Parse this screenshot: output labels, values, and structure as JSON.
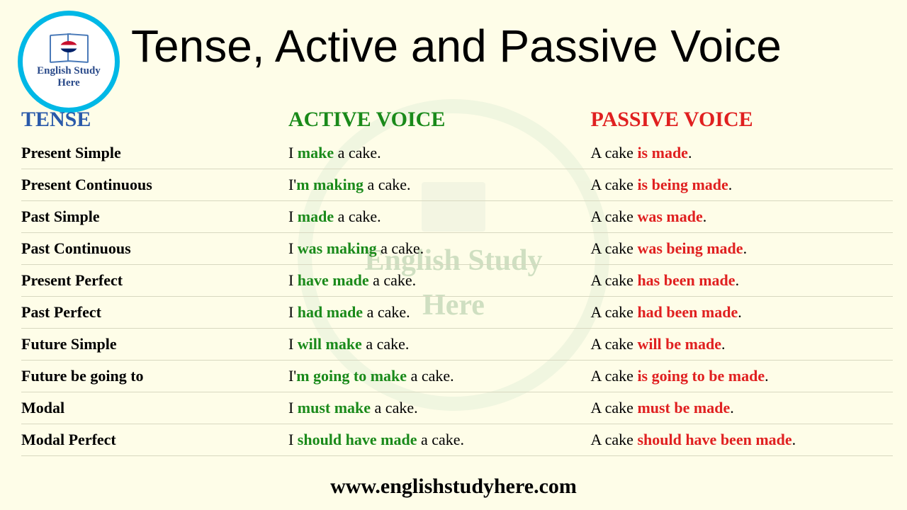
{
  "logo": {
    "line1": "English Study",
    "line2": "Here"
  },
  "title": "Tense, Active and Passive Voice",
  "headers": {
    "tense": "TENSE",
    "active": "ACTIVE VOICE",
    "passive": "PASSIVE VOICE"
  },
  "watermark": "English Study\nHere",
  "footer": "www.englishstudyhere.com",
  "colors": {
    "background": "#fefde8",
    "tense_header": "#2a5aaa",
    "active_header": "#1a8a1a",
    "passive_header": "#e02020",
    "active_verb": "#1a8a1a",
    "passive_verb": "#e02020",
    "logo_border": "#00b8e6",
    "row_border": "#d8d8c0"
  },
  "typography": {
    "title_fontsize": 64,
    "header_fontsize": 30,
    "row_fontsize": 22,
    "footer_fontsize": 30
  },
  "rows": [
    {
      "tense": "Present Simple",
      "active_pre": "I ",
      "active_verb": "make",
      "active_post": " a cake.",
      "passive_pre": "A cake ",
      "passive_verb": "is made",
      "passive_post": "."
    },
    {
      "tense": "Present Continuous",
      "active_pre": "I'",
      "active_verb": "m making",
      "active_post": " a cake.",
      "passive_pre": "A cake ",
      "passive_verb": "is being made",
      "passive_post": "."
    },
    {
      "tense": "Past Simple",
      "active_pre": "I ",
      "active_verb": "made",
      "active_post": " a cake.",
      "passive_pre": "A cake ",
      "passive_verb": "was made",
      "passive_post": "."
    },
    {
      "tense": "Past Continuous",
      "active_pre": "I ",
      "active_verb": "was making",
      "active_post": " a cake.",
      "passive_pre": "A cake ",
      "passive_verb": "was being made",
      "passive_post": "."
    },
    {
      "tense": "Present Perfect",
      "active_pre": "I ",
      "active_verb": "have made",
      "active_post": " a cake.",
      "passive_pre": "A cake ",
      "passive_verb": "has been made",
      "passive_post": "."
    },
    {
      "tense": "Past Perfect",
      "active_pre": "I ",
      "active_verb": "had made",
      "active_post": " a cake.",
      "passive_pre": "A cake ",
      "passive_verb": "had been made",
      "passive_post": "."
    },
    {
      "tense": "Future Simple",
      "active_pre": "I ",
      "active_verb": "will make",
      "active_post": " a cake.",
      "passive_pre": "A cake ",
      "passive_verb": "will be made",
      "passive_post": "."
    },
    {
      "tense": "Future be going to",
      "active_pre": "I'",
      "active_verb": "m going to make",
      "active_post": " a cake.",
      "passive_pre": "A cake ",
      "passive_verb": "is going to be made",
      "passive_post": "."
    },
    {
      "tense": "Modal",
      "active_pre": "I ",
      "active_verb": "must make",
      "active_post": " a cake.",
      "passive_pre": "A cake ",
      "passive_verb": "must be made",
      "passive_post": "."
    },
    {
      "tense": "Modal Perfect",
      "active_pre": "I ",
      "active_verb": "should have made",
      "active_post": " a cake.",
      "passive_pre": "A cake ",
      "passive_verb": "should have been made",
      "passive_post": "."
    }
  ]
}
